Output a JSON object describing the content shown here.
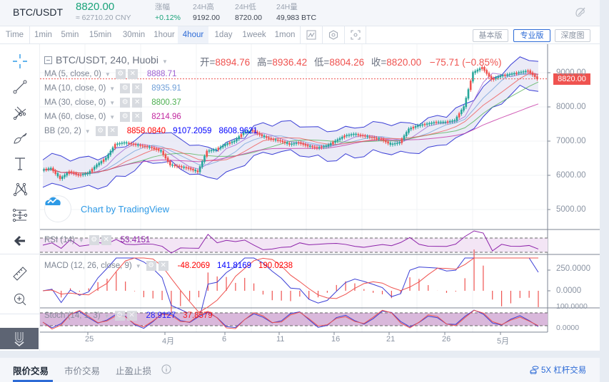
{
  "ticker": {
    "pair": "BTC/USDT",
    "last_price": "8820.00",
    "cny_equiv": "≈ 62710.20 CNY",
    "stats": [
      {
        "label": "涨幅",
        "value": "+0.12%",
        "up": true
      },
      {
        "label": "24H高",
        "value": "9192.00",
        "up": false
      },
      {
        "label": "24H低",
        "value": "8720.00",
        "up": false
      },
      {
        "label": "24H量",
        "value": "49,983 BTC",
        "up": false
      }
    ],
    "theme_icon": "paint-brush-icon"
  },
  "toolbar": {
    "timeframes": [
      "Time",
      "1min",
      "5min",
      "15min",
      "30min",
      "1hour",
      "4hour",
      "1day",
      "1week",
      "1mon"
    ],
    "active_timeframe": "4hour",
    "icons": [
      "chart-type-icon",
      "settings-hexagon-icon",
      "fullscreen-icon"
    ],
    "views": [
      "基本版",
      "专业版",
      "深度图"
    ],
    "active_view": "专业版"
  },
  "drawing_tools": [
    "crosshair-icon",
    "trend-line-icon",
    "pitchfork-icon",
    "brush-icon",
    "text-icon",
    "pattern-icon",
    "fib-retracement-icon",
    "back-arrow-icon",
    "ruler-icon",
    "zoom-in-icon",
    "magnet-icon"
  ],
  "chart": {
    "title": "BTC/USDT, 240, Huobi",
    "ohlc": {
      "open_label": "开=",
      "open": "8894.76",
      "high_label": "高=",
      "high": "8936.42",
      "low_label": "低=",
      "low": "8804.26",
      "close_label": "收=",
      "close": "8820.00",
      "change": "−75.71 (−0.85%)"
    },
    "studies": [
      {
        "name": "MA (5, close, 0)",
        "values": [
          "8888.71"
        ],
        "colors": [
          "#9c5fd1"
        ]
      },
      {
        "name": "MA (10, close, 0)",
        "values": [
          "8935.91"
        ],
        "colors": [
          "#6f9fd8"
        ]
      },
      {
        "name": "MA (30, close, 0)",
        "values": [
          "8800.37"
        ],
        "colors": [
          "#4caf50"
        ]
      },
      {
        "name": "MA (60, close, 0)",
        "values": [
          "8214.96"
        ],
        "colors": [
          "#c2289f"
        ]
      },
      {
        "name": "BB (20, 2)",
        "values": [
          "8858.0840",
          "9107.2059",
          "8608.9621"
        ],
        "colors": [
          "#ff0000",
          "#0000ff",
          "#0000ff"
        ]
      }
    ],
    "watermark": "Chart by TradingView",
    "current_price_tag": "8820.00",
    "price_axis": [
      "9000.00",
      "8000.00",
      "7000.00",
      "6000.00",
      "5000.00"
    ],
    "rsi": {
      "name": "RSI (14)",
      "value": "53.4151",
      "color": "#8e24aa"
    },
    "macd": {
      "name": "MACD (12, 26, close, 9)",
      "values": [
        "-48.2069",
        "141.8169",
        "190.0238"
      ],
      "colors": [
        "#ff0000",
        "#0000ff",
        "#ff0000"
      ],
      "axis": [
        "250.0000",
        "0.0000"
      ]
    },
    "stoch": {
      "name": "Stoch (14, 1, 3)",
      "values": [
        "28.9127",
        "37.8579"
      ],
      "colors": [
        "#0000ff",
        "#ff0000"
      ],
      "axis": [
        "100.0000",
        "0.0000"
      ]
    },
    "date_axis": [
      "25",
      "4月",
      "6",
      "11",
      "16",
      "21",
      "26",
      "5月"
    ],
    "colors": {
      "up": "#26a69a",
      "down": "#ef5350",
      "bb_band": "#3b3fd6",
      "bb_fill": "#e6e6f5"
    }
  },
  "chart_data": {
    "type": "candlestick",
    "title": "BTC/USDT, 240, Huobi",
    "x_ticks": [
      "25",
      "4月",
      "6",
      "11",
      "16",
      "21",
      "26",
      "5月"
    ],
    "y_ticks": [
      5000,
      6000,
      7000,
      8000,
      9000
    ],
    "close_series_approx": [
      6150,
      6200,
      5900,
      6100,
      6000,
      6050,
      6300,
      6500,
      6900,
      6950,
      6900,
      6850,
      6800,
      6700,
      6300,
      6250,
      6200,
      6100,
      6700,
      6750,
      6900,
      7000,
      7250,
      7300,
      7150,
      7050,
      7000,
      6900,
      6950,
      6850,
      6800,
      6850,
      7000,
      7150,
      7200,
      7150,
      7100,
      7050,
      6900,
      6950,
      7350,
      7450,
      7500,
      7550,
      7550,
      7600,
      8000,
      9000,
      9150,
      8800,
      8900,
      8950,
      9000,
      9050,
      8820
    ],
    "last_close": 8820.0
  },
  "trade_tabs": {
    "tabs": [
      "限价交易",
      "市价交易",
      "止盈止损"
    ],
    "active": "限价交易",
    "info_icon": "info-icon",
    "leverage_label": "5X 杠杆交易"
  }
}
